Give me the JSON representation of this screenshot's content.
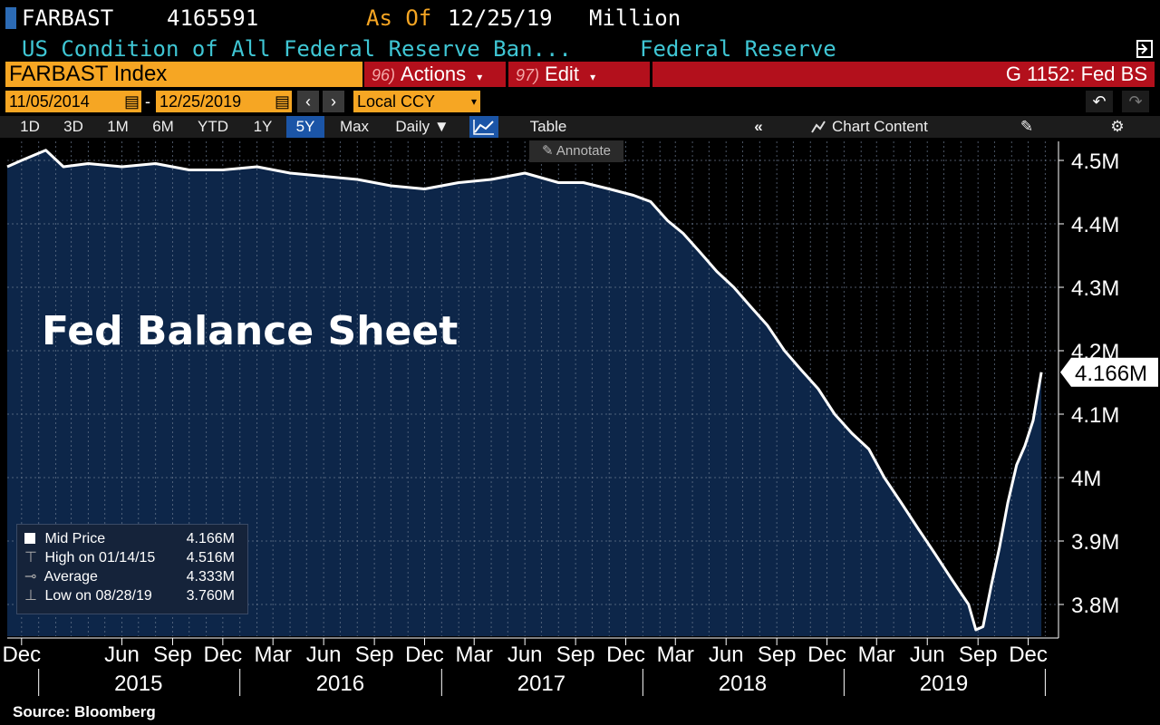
{
  "header": {
    "ticker": "FARBAST",
    "value": "4165591",
    "as_of_label": "As Of",
    "as_of_date": "12/25/19",
    "unit": "Million",
    "description": "US Condition of All Federal Reserve Ban...",
    "source_name": "Federal Reserve"
  },
  "toolbar": {
    "security": "FARBAST Index",
    "actions_num": "96)",
    "actions_label": "Actions",
    "edit_num": "97)",
    "edit_label": "Edit",
    "function": "G 1152: Fed BS"
  },
  "range": {
    "start_date": "11/05/2014",
    "end_date": "12/25/2019",
    "separator": "-",
    "currency": "Local CCY"
  },
  "tabs": [
    {
      "label": "1D"
    },
    {
      "label": "3D"
    },
    {
      "label": "1M"
    },
    {
      "label": "6M"
    },
    {
      "label": "YTD"
    },
    {
      "label": "1Y"
    },
    {
      "label": "5Y"
    },
    {
      "label": "Max"
    },
    {
      "label": "Daily ▼"
    }
  ],
  "active_tab": "5Y",
  "table_label": "Table",
  "chart_content_label": "Chart Content",
  "annotate_label": "Annotate",
  "chart_title": "Fed Balance Sheet",
  "legend": {
    "mid_label": "Mid Price",
    "mid_value": "4.166M",
    "high_label": "High on 01/14/15",
    "high_value": "4.516M",
    "avg_label": "Average",
    "avg_value": "4.333M",
    "low_label": "Low on 08/28/19",
    "low_value": "3.760M"
  },
  "source": "Source: Bloomberg",
  "colors": {
    "area": "#0d2649",
    "line": "#ffffff",
    "orange": "#f6a623",
    "red": "#b3101c",
    "cyan": "#3fc6d4",
    "active_tab": "#1b55a7"
  },
  "chart_data": {
    "type": "area",
    "title": "",
    "unit": "Million USD",
    "ylim": [
      3750000,
      4530000
    ],
    "y_ticks": [
      "4.5M",
      "4.4M",
      "4.3M",
      "4.2M",
      "4.1M",
      "4M",
      "3.9M",
      "3.8M"
    ],
    "y_tick_values": [
      4500000,
      4400000,
      4300000,
      4200000,
      4100000,
      4000000,
      3900000,
      3800000
    ],
    "last_value_label": "4.166M",
    "last_value": 4166000,
    "x_month_ticks": [
      "Dec",
      "Jun",
      "Sep",
      "Dec",
      "Mar",
      "Jun",
      "Sep",
      "Dec",
      "Mar",
      "Jun",
      "Sep",
      "Dec",
      "Mar",
      "Jun",
      "Sep",
      "Dec",
      "Mar",
      "Jun",
      "Sep",
      "Dec"
    ],
    "x_month_dates": [
      "2014-12-01",
      "2015-06-01",
      "2015-09-01",
      "2015-12-01",
      "2016-03-01",
      "2016-06-01",
      "2016-09-01",
      "2016-12-01",
      "2017-03-01",
      "2017-06-01",
      "2017-09-01",
      "2017-12-01",
      "2018-03-01",
      "2018-06-01",
      "2018-09-01",
      "2018-12-01",
      "2019-03-01",
      "2019-06-01",
      "2019-09-01",
      "2019-12-01"
    ],
    "x_year_ticks": [
      "2015",
      "2016",
      "2017",
      "2018",
      "2019"
    ],
    "x_year_dates": [
      "2015-07-01",
      "2016-07-01",
      "2017-07-01",
      "2018-07-01",
      "2019-07-01"
    ],
    "grid": true,
    "series": [
      {
        "x": [
          "2014-11-05",
          "2014-12-01",
          "2015-01-14",
          "2015-02-15",
          "2015-04-01",
          "2015-06-01",
          "2015-08-01",
          "2015-10-01",
          "2015-12-01",
          "2016-02-01",
          "2016-04-01",
          "2016-06-01",
          "2016-08-01",
          "2016-10-01",
          "2016-12-01",
          "2017-02-01",
          "2017-04-01",
          "2017-06-01",
          "2017-08-01",
          "2017-09-15",
          "2017-11-01",
          "2017-12-15",
          "2018-01-15",
          "2018-02-15",
          "2018-03-15",
          "2018-04-15",
          "2018-05-15",
          "2018-06-15",
          "2018-07-15",
          "2018-08-15",
          "2018-09-15",
          "2018-10-15",
          "2018-11-15",
          "2018-12-15",
          "2019-01-15",
          "2019-02-15",
          "2019-03-15",
          "2019-04-15",
          "2019-05-15",
          "2019-06-15",
          "2019-07-15",
          "2019-08-15",
          "2019-08-28",
          "2019-09-10",
          "2019-09-25",
          "2019-10-10",
          "2019-10-25",
          "2019-11-10",
          "2019-11-25",
          "2019-12-10",
          "2019-12-25"
        ],
        "y": [
          4490000,
          4500000,
          4516000,
          4490000,
          4495000,
          4490000,
          4495000,
          4485000,
          4485000,
          4490000,
          4480000,
          4475000,
          4470000,
          4460000,
          4455000,
          4465000,
          4470000,
          4480000,
          4465000,
          4465000,
          4455000,
          4445000,
          4435000,
          4405000,
          4385000,
          4355000,
          4325000,
          4300000,
          4270000,
          4240000,
          4200000,
          4170000,
          4140000,
          4100000,
          4070000,
          4045000,
          4000000,
          3960000,
          3920000,
          3880000,
          3840000,
          3800000,
          3760000,
          3765000,
          3830000,
          3890000,
          3960000,
          4020000,
          4050000,
          4090000,
          4166000
        ]
      }
    ]
  }
}
